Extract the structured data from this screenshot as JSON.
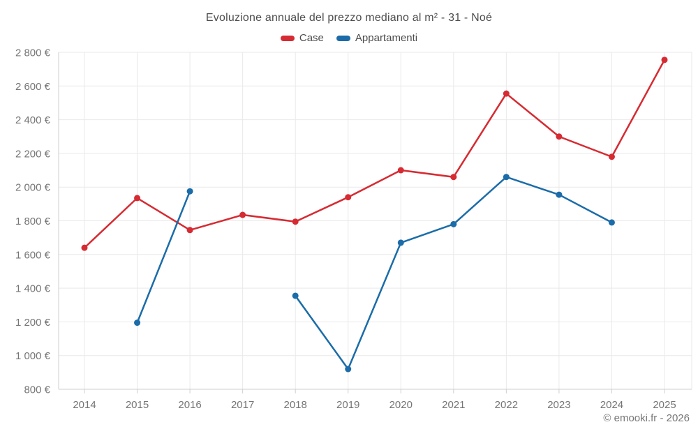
{
  "footer": {
    "copyright": "© emooki.fr - 2026"
  },
  "chart_data": {
    "type": "line",
    "title": "Evoluzione annuale del prezzo mediano al m² - 31 - Noé",
    "categories": [
      "2014",
      "2015",
      "2016",
      "2017",
      "2018",
      "2019",
      "2020",
      "2021",
      "2022",
      "2023",
      "2024",
      "2025"
    ],
    "series": [
      {
        "name": "Case",
        "color": "#d62b32",
        "values": [
          1640,
          1935,
          1745,
          1835,
          1795,
          1940,
          2100,
          2060,
          2555,
          2300,
          2180,
          2755
        ]
      },
      {
        "name": "Appartamenti",
        "color": "#1b6ca8",
        "values": [
          null,
          1195,
          1975,
          null,
          1355,
          920,
          1670,
          1780,
          2060,
          1955,
          1790,
          null
        ]
      }
    ],
    "xlabel": "",
    "ylabel": "",
    "ylim": [
      800,
      2800
    ],
    "y_ticks": [
      800,
      1000,
      1200,
      1400,
      1600,
      1800,
      2000,
      2200,
      2400,
      2600,
      2800
    ],
    "y_tick_labels": [
      "800 €",
      "1 000 €",
      "1 200 €",
      "1 400 €",
      "1 600 €",
      "1 800 €",
      "2 000 €",
      "2 200 €",
      "2 400 €",
      "2 600 €",
      "2 800 €"
    ],
    "grid": true,
    "legend_position": "top"
  }
}
